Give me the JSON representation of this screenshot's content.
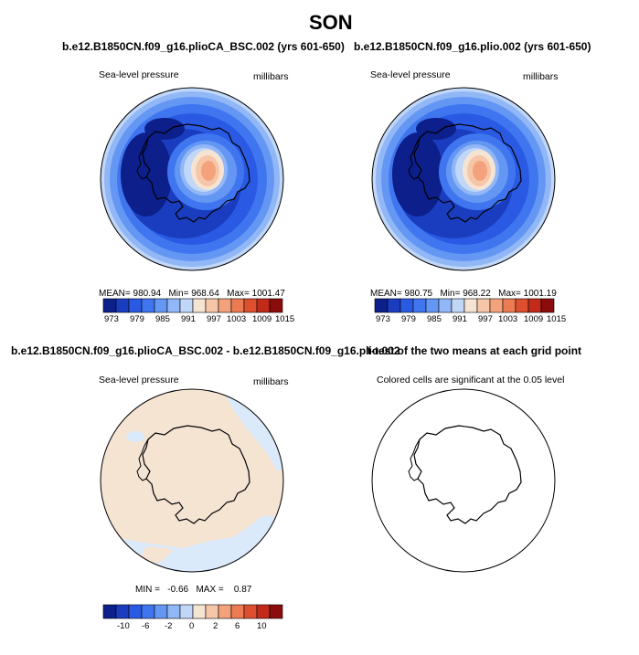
{
  "figure": {
    "season": "SON",
    "units_label": "millibars",
    "colors": [
      "#0c1f8a",
      "#1a3dbf",
      "#2a5ae3",
      "#3f76f0",
      "#6497f3",
      "#92b7f6",
      "#c1d7f8",
      "#f6e4d3",
      "#f6c6a8",
      "#f3a27c",
      "#ec7a52",
      "#dd4f2e",
      "#c22a19",
      "#8b0c0c"
    ]
  },
  "panels": {
    "top_left": {
      "title": "b.e12.B1850CN.f09_g16.plioCA_BSC.002 (yrs 601-650)",
      "variable": "Sea-level pressure",
      "units": "millibars",
      "mean_label": "MEAN=",
      "mean": "980.94",
      "min_label": "Min=",
      "min": "968.64",
      "max_label": "Max=",
      "max": "1001.47",
      "ticks": [
        "973",
        "979",
        "985",
        "991",
        "997",
        "1003",
        "1009",
        "1015"
      ]
    },
    "top_right": {
      "title": "b.e12.B1850CN.f09_g16.plio.002 (yrs 601-650)",
      "variable": "Sea-level pressure",
      "units": "millibars",
      "mean_label": "MEAN=",
      "mean": "980.75",
      "min_label": "Min=",
      "min": "968.22",
      "max_label": "Max=",
      "max": "1001.19",
      "ticks": [
        "973",
        "979",
        "985",
        "991",
        "997",
        "1003",
        "1009",
        "1015"
      ]
    },
    "bottom_left": {
      "title": "b.e12.B1850CN.f09_g16.plioCA_BSC.002 - b.e12.B1850CN.f09_g16.plio.002",
      "variable": "Sea-level pressure",
      "units": "millibars",
      "min_label": "MIN =",
      "min": "-0.66",
      "max_label": "MAX =",
      "max": "0.87",
      "ticks": [
        "-10",
        "-6",
        "-2",
        "0",
        "2",
        "6",
        "10"
      ]
    },
    "bottom_right": {
      "title": "t-test of the two means at each grid point",
      "note": "Colored cells are significant at the 0.05 level"
    }
  }
}
